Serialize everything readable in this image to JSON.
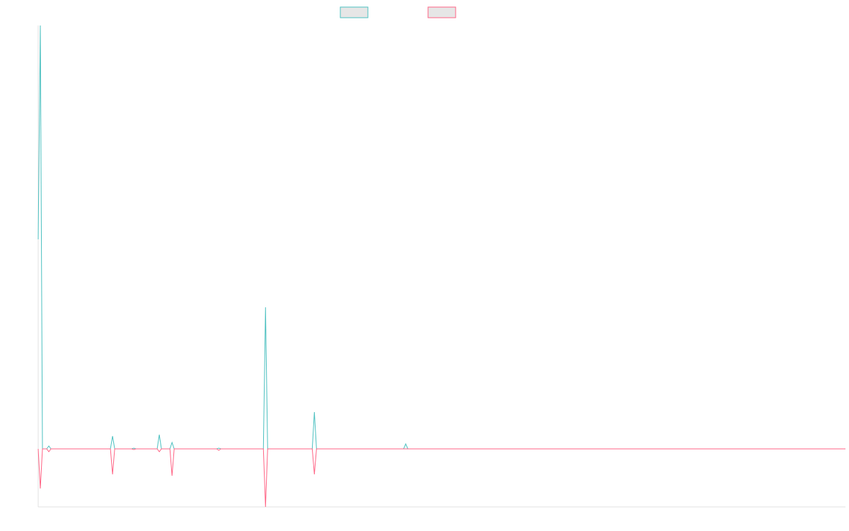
{
  "chart_data": {
    "type": "line",
    "x": [
      0,
      1,
      2,
      4,
      5,
      6,
      34,
      35,
      36,
      44,
      45,
      46,
      56,
      57,
      58,
      62,
      63,
      64,
      84,
      85,
      86,
      106,
      107,
      108,
      129,
      130,
      131,
      172,
      173,
      174,
      380
    ],
    "series": [
      {
        "color": "#4bc0c0",
        "values": [
          296,
          598,
          0,
          0,
          4,
          0,
          0,
          18,
          0,
          0,
          1,
          0,
          0,
          20,
          0,
          0,
          9,
          0,
          0,
          1,
          0,
          0,
          200,
          0,
          0,
          52,
          0,
          0,
          7,
          0,
          0
        ]
      },
      {
        "color": "#ff6384",
        "values": [
          0,
          -56,
          0,
          0,
          -4,
          0,
          0,
          -36,
          0,
          0,
          -1,
          0,
          0,
          -4,
          0,
          0,
          -38,
          0,
          0,
          -2,
          0,
          0,
          -82,
          0,
          0,
          -36,
          0,
          0,
          0,
          0,
          0
        ]
      }
    ],
    "xlim": [
      0,
      380
    ],
    "ylim": [
      -82,
      598
    ]
  }
}
